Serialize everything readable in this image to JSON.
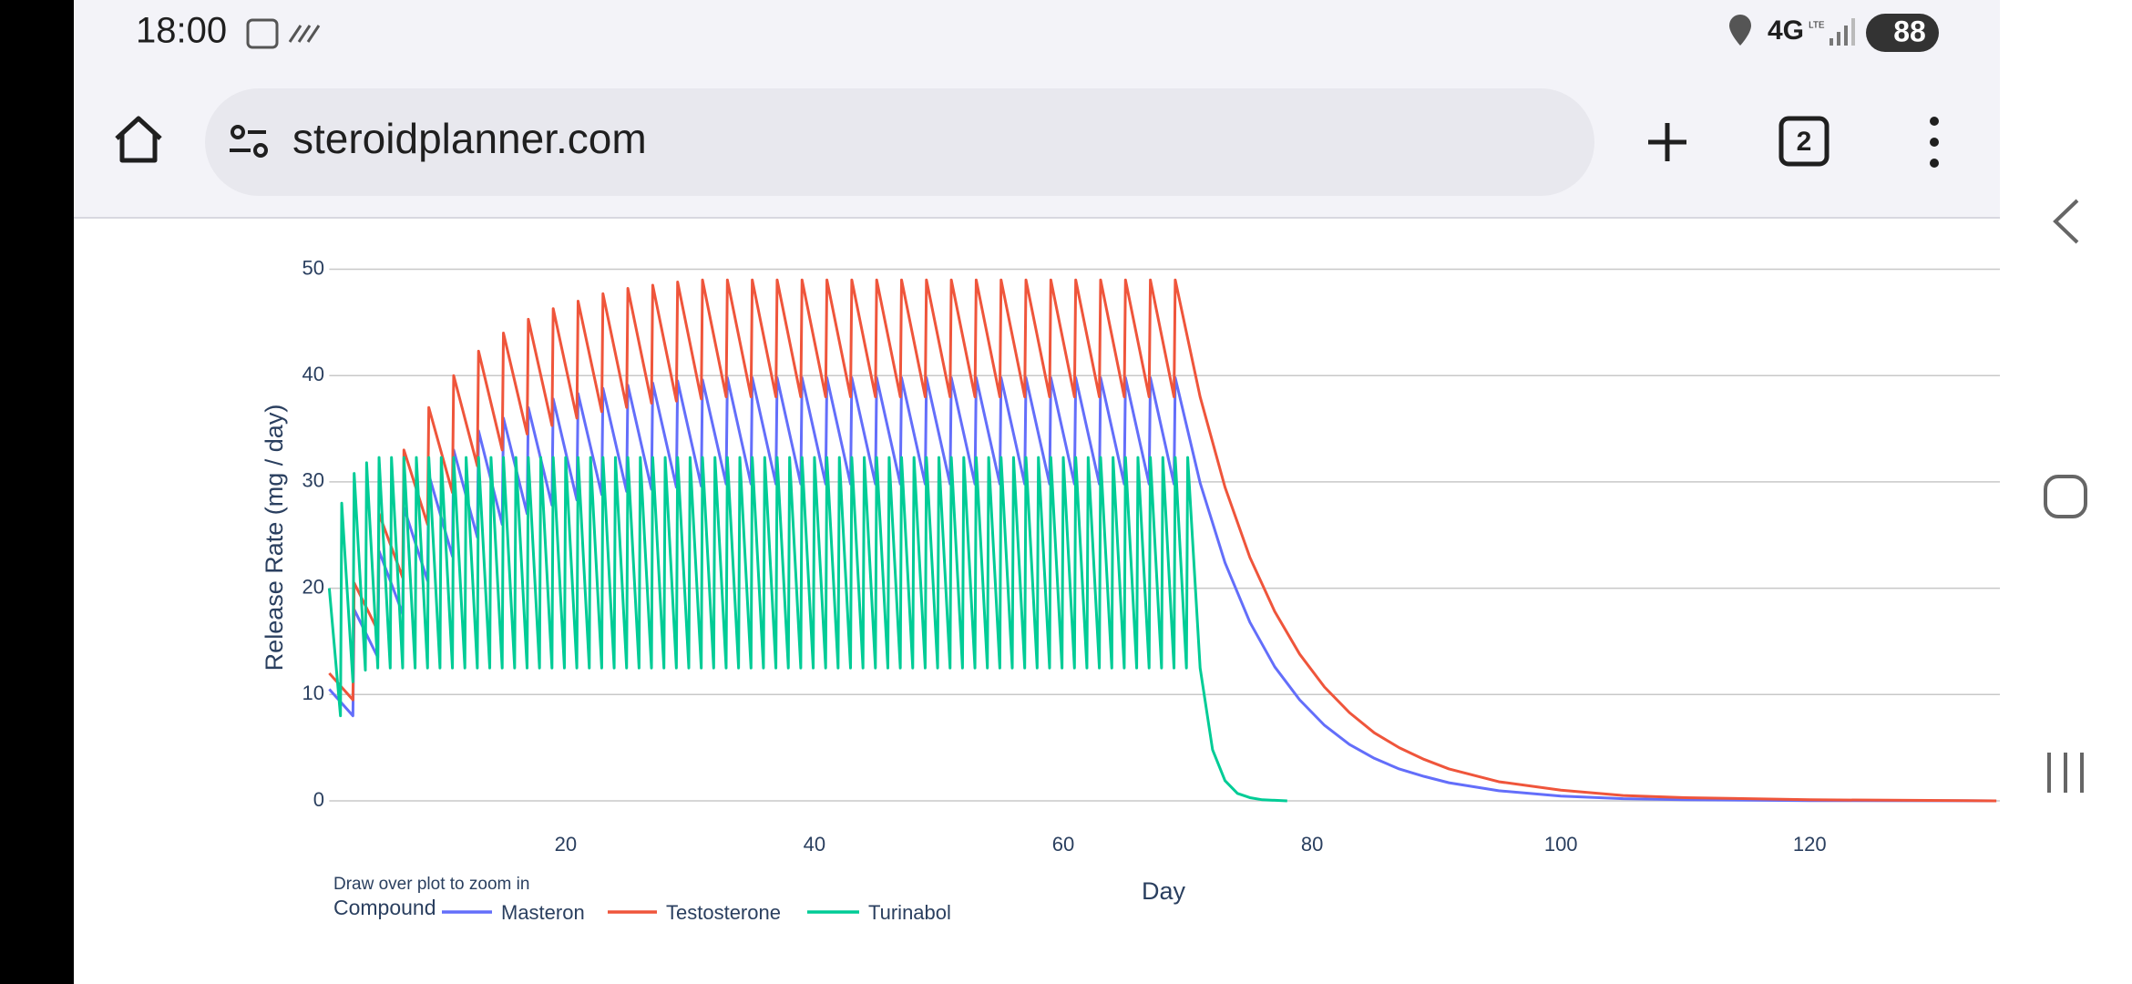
{
  "status_bar": {
    "time": "18:00",
    "network": "4G",
    "network_sub": "LTE",
    "battery": "88"
  },
  "browser": {
    "url": "steroidplanner.com",
    "tab_count": "2"
  },
  "chart_data": {
    "type": "line",
    "y_label": "Release Rate (mg / day)",
    "x_label": "Day",
    "hint": "Draw over plot to zoom in",
    "legend_title": "Compound",
    "xlim": [
      1,
      135
    ],
    "xticks": [
      20,
      40,
      60,
      80,
      100,
      120
    ],
    "ylim": [
      -2,
      52
    ],
    "yticks": [
      0,
      10,
      20,
      30,
      40,
      50
    ],
    "grid": true,
    "series": [
      {
        "name": "Masteron",
        "color": "#636efa",
        "x": [
          1,
          2.9,
          3,
          4.9,
          5,
          6.9,
          7,
          8.9,
          9,
          10.9,
          11,
          12.9,
          13,
          14.9,
          15,
          16.9,
          17,
          18.9,
          19,
          20.9,
          21,
          22.9,
          23,
          24.9,
          25,
          26.9,
          27,
          28.9,
          29,
          30.9,
          31,
          32.9,
          33,
          34.9,
          35,
          36.9,
          37,
          38.9,
          39,
          40.9,
          41,
          42.9,
          43,
          44.9,
          45,
          46.9,
          47,
          48.9,
          49,
          50.9,
          51,
          52.9,
          53,
          54.9,
          55,
          56.9,
          57,
          58.9,
          59,
          60.9,
          61,
          62.9,
          63,
          64.9,
          65,
          66.9,
          67,
          68.9,
          69,
          71,
          73,
          75,
          77,
          79,
          81,
          83,
          85,
          87,
          89,
          91,
          95,
          100,
          105,
          110,
          120,
          135
        ],
        "values": [
          10.5,
          8,
          18,
          13.5,
          23.5,
          17.6,
          27.6,
          20.7,
          30.7,
          23,
          33,
          24.8,
          34.8,
          26,
          36,
          27,
          37,
          27.8,
          37.8,
          28.3,
          38.3,
          28.8,
          38.8,
          29.1,
          39.1,
          29.3,
          39.3,
          29.5,
          39.5,
          29.6,
          39.6,
          29.8,
          39.8,
          29.8,
          39.8,
          29.8,
          39.8,
          29.8,
          39.8,
          29.8,
          39.8,
          29.8,
          39.8,
          29.8,
          39.8,
          29.8,
          39.8,
          29.8,
          39.8,
          29.8,
          39.8,
          29.8,
          39.8,
          29.8,
          39.8,
          29.8,
          39.8,
          29.8,
          39.8,
          29.8,
          39.8,
          29.8,
          39.8,
          29.8,
          39.8,
          29.8,
          39.8,
          29.8,
          39.8,
          29.9,
          22.4,
          16.8,
          12.6,
          9.5,
          7.1,
          5.3,
          4,
          3,
          2.3,
          1.7,
          0.95,
          0.45,
          0.2,
          0.1,
          0.02,
          0
        ]
      },
      {
        "name": "Testosterone",
        "color": "#ef553b",
        "x": [
          1,
          2.9,
          3,
          4.9,
          5,
          6.9,
          7,
          8.9,
          9,
          10.9,
          11,
          12.9,
          13,
          14.9,
          15,
          16.9,
          17,
          18.9,
          19,
          20.9,
          21,
          22.9,
          23,
          24.9,
          25,
          26.9,
          27,
          28.9,
          29,
          30.9,
          31,
          32.9,
          33,
          34.9,
          35,
          36.9,
          37,
          38.9,
          39,
          40.9,
          41,
          42.9,
          43,
          44.9,
          45,
          46.9,
          47,
          48.9,
          49,
          50.9,
          51,
          52.9,
          53,
          54.9,
          55,
          56.9,
          57,
          58.9,
          59,
          60.9,
          61,
          62.9,
          63,
          64.9,
          65,
          66.9,
          67,
          68.9,
          69,
          71,
          73,
          75,
          77,
          79,
          81,
          83,
          85,
          87,
          89,
          91,
          95,
          100,
          105,
          110,
          120,
          135
        ],
        "values": [
          12,
          9.5,
          20.5,
          16,
          27,
          21,
          33,
          26,
          37,
          29,
          40,
          31.5,
          42.3,
          33,
          44,
          34.5,
          45.3,
          35.3,
          46.3,
          36,
          47,
          36.6,
          47.7,
          37,
          48.2,
          37.4,
          48.5,
          37.6,
          48.8,
          37.8,
          49,
          38,
          49,
          38,
          49,
          38,
          49,
          38,
          49,
          38,
          49,
          38,
          49,
          38,
          49,
          38,
          49,
          38,
          49,
          38,
          49,
          38,
          49,
          38,
          49,
          38,
          49,
          38,
          49,
          38,
          49,
          38,
          49,
          38,
          49,
          38,
          49,
          38,
          49,
          38,
          29.5,
          22.9,
          17.8,
          13.8,
          10.7,
          8.3,
          6.4,
          5,
          3.9,
          3,
          1.8,
          1,
          0.5,
          0.3,
          0.1,
          0
        ]
      },
      {
        "name": "Turinabol",
        "color": "#00cc96",
        "x": [
          1,
          1.9,
          2,
          2.9,
          3,
          3.9,
          4,
          4.9,
          5,
          5.9,
          6,
          6.9,
          7,
          7.9,
          8,
          8.9,
          9,
          9.9,
          10,
          10.9,
          11,
          11.9,
          12,
          12.9,
          13,
          13.9,
          14,
          14.9,
          15,
          15.9,
          16,
          16.9,
          17,
          17.9,
          18,
          18.9,
          19,
          19.9,
          20,
          20.9,
          21,
          21.9,
          22,
          22.9,
          23,
          23.9,
          24,
          24.9,
          25,
          25.9,
          26,
          26.9,
          27,
          27.9,
          28,
          28.9,
          29,
          29.9,
          30,
          30.9,
          31,
          31.9,
          32,
          32.9,
          33,
          33.9,
          34,
          34.9,
          35,
          35.9,
          36,
          36.9,
          37,
          37.9,
          38,
          38.9,
          39,
          39.9,
          40,
          40.9,
          41,
          41.9,
          42,
          42.9,
          43,
          43.9,
          44,
          44.9,
          45,
          45.9,
          46,
          46.9,
          47,
          47.9,
          48,
          48.9,
          49,
          49.9,
          50,
          50.9,
          51,
          51.9,
          52,
          52.9,
          53,
          53.9,
          54,
          54.9,
          55,
          55.9,
          56,
          56.9,
          57,
          57.9,
          58,
          58.9,
          59,
          59.9,
          60,
          60.9,
          61,
          61.9,
          62,
          62.9,
          63,
          63.9,
          64,
          64.9,
          65,
          65.9,
          66,
          66.9,
          67,
          67.9,
          68,
          68.9,
          69,
          69.9,
          70,
          71,
          72,
          73,
          74,
          75,
          76,
          78
        ],
        "values": [
          20,
          8,
          28,
          11.2,
          30.8,
          12.3,
          31.8,
          12.5,
          32.3,
          12.5,
          32.3,
          12.5,
          32.3,
          12.5,
          32.3,
          12.5,
          32.3,
          12.5,
          32.3,
          12.5,
          32.3,
          12.5,
          32.3,
          12.5,
          32.3,
          12.5,
          32.3,
          12.5,
          32.3,
          12.5,
          32.3,
          12.5,
          32.3,
          12.5,
          32.3,
          12.5,
          32.3,
          12.5,
          32.3,
          12.5,
          32.3,
          12.5,
          32.3,
          12.5,
          32.3,
          12.5,
          32.3,
          12.5,
          32.3,
          12.5,
          32.3,
          12.5,
          32.3,
          12.5,
          32.3,
          12.5,
          32.3,
          12.5,
          32.3,
          12.5,
          32.3,
          12.5,
          32.3,
          12.5,
          32.3,
          12.5,
          32.3,
          12.5,
          32.3,
          12.5,
          32.3,
          12.5,
          32.3,
          12.5,
          32.3,
          12.5,
          32.3,
          12.5,
          32.3,
          12.5,
          32.3,
          12.5,
          32.3,
          12.5,
          32.3,
          12.5,
          32.3,
          12.5,
          32.3,
          12.5,
          32.3,
          12.5,
          32.3,
          12.5,
          32.3,
          12.5,
          32.3,
          12.5,
          32.3,
          12.5,
          32.3,
          12.5,
          32.3,
          12.5,
          32.3,
          12.5,
          32.3,
          12.5,
          32.3,
          12.5,
          32.3,
          12.5,
          32.3,
          12.5,
          32.3,
          12.5,
          32.3,
          12.5,
          32.3,
          12.5,
          32.3,
          12.5,
          32.3,
          12.5,
          32.3,
          12.5,
          32.3,
          12.5,
          32.3,
          12.5,
          32.3,
          12.5,
          32.3,
          12.5,
          32.3,
          12.5,
          32.3,
          12.5,
          32.3,
          12.5,
          4.8,
          1.9,
          0.7,
          0.3,
          0.1,
          0
        ]
      }
    ]
  }
}
